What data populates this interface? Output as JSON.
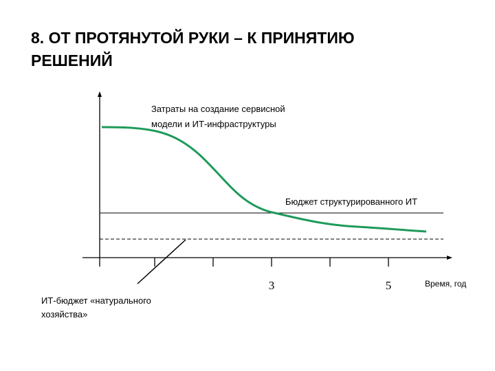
{
  "title": [
    "8. ОТ ПРОТЯНУТОЙ РУКИ – К ПРИНЯТИЮ",
    "РЕШЕНИЙ"
  ],
  "curve_label": [
    "Затраты на создание сервисной",
    "модели и ИТ-инфраструктуры"
  ],
  "structured_budget_label": "Бюджет структурированного ИТ",
  "natural_budget_label": [
    "ИТ-бюджет «натурального",
    "хозяйства»"
  ],
  "x_tick_labels": [
    "3",
    "5"
  ],
  "x_axis_label": "Время, год"
}
